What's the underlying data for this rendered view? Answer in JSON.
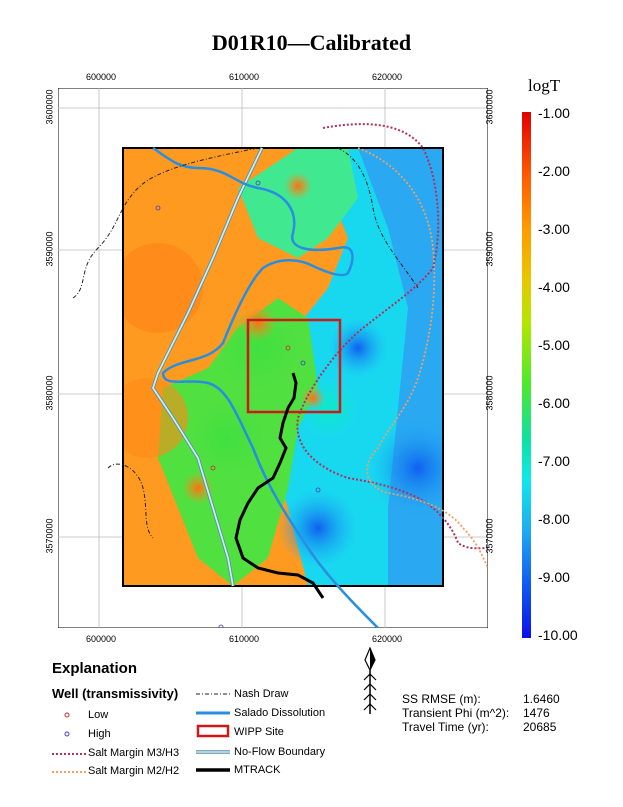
{
  "title": "D01R10—Calibrated",
  "map": {
    "x_ticks": [
      "600000",
      "610000",
      "620000"
    ],
    "y_ticks": [
      "3600000",
      "3590000",
      "3580000",
      "3570000"
    ]
  },
  "colorbar": {
    "title": "logT",
    "labels": [
      "-1.00",
      "-2.00",
      "-3.00",
      "-4.00",
      "-5.00",
      "-6.00",
      "-7.00",
      "-8.00",
      "-9.00",
      "-10.00"
    ]
  },
  "legend": {
    "heading": "Explanation",
    "well_heading": "Well (transmissivity)",
    "items": {
      "low": "Low",
      "high": "High",
      "salt_m3": "Salt Margin M3/H3",
      "salt_m2": "Salt Margin M2/H2",
      "nash_draw": "Nash Draw",
      "salado": "Salado Dissolution",
      "wipp": "WIPP Site",
      "no_flow": "No-Flow Boundary",
      "mtrack": "MTRACK"
    },
    "colors": {
      "salt_m3": "#b03060",
      "salt_m2": "#f0a060",
      "salado": "#2a8ee0",
      "wipp": "#d01818",
      "no_flow": "#a8dce8",
      "mtrack": "#000000"
    }
  },
  "stats": {
    "rmse_label": "SS RMSE (m):",
    "rmse_value": "1.6460",
    "phi_label": "Transient Phi (m^2):",
    "phi_value": "1476",
    "travel_label": "Travel Time (yr):",
    "travel_value": "20685"
  }
}
